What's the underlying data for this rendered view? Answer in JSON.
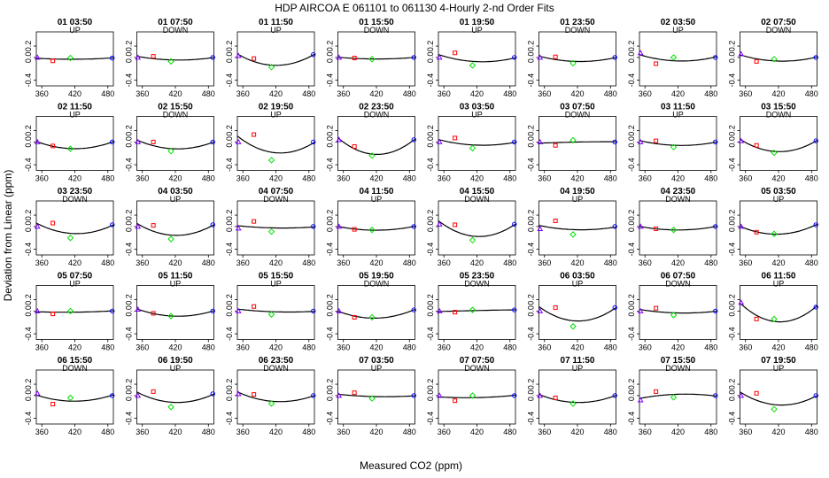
{
  "chart_data": {
    "type": "scatter",
    "title": "HDP   AIRCOA E    061101 to 061130    4-Hourly 2-nd Order Fits",
    "xlabel": "Measured CO2 (ppm)",
    "ylabel": "Deviation from Linear (ppm)",
    "xlim": [
      350,
      490
    ],
    "ylim": [
      -0.5,
      0.45
    ],
    "xticks": [
      "360",
      "420",
      "480"
    ],
    "xtick_values": [
      360,
      420,
      480
    ],
    "yticks": [
      "-0.4",
      "0.0",
      "0.2"
    ],
    "ytick_values": [
      -0.4,
      0,
      0.2
    ],
    "grid": false,
    "layout": "5 rows x 8 panels",
    "standard_x": [
      352,
      380,
      412,
      488
    ],
    "standard_colors": [
      "#8000ff",
      "#ff0000",
      "#00e000",
      "#0000ff"
    ],
    "fit_color": "#000000",
    "panels": [
      {
        "label": "01 03:50",
        "mode": "UP",
        "y": [
          0.0,
          -0.06,
          -0.01,
          -0.01
        ]
      },
      {
        "label": "01 07:50",
        "mode": "DOWN",
        "y": [
          0.0,
          0.02,
          -0.07,
          0.0
        ]
      },
      {
        "label": "01 11:50",
        "mode": "UP",
        "y": [
          0.03,
          -0.02,
          -0.17,
          0.05
        ]
      },
      {
        "label": "01 15:50",
        "mode": "DOWN",
        "y": [
          0.0,
          -0.01,
          -0.03,
          0.0
        ]
      },
      {
        "label": "01 19:50",
        "mode": "UP",
        "y": [
          0.0,
          0.08,
          -0.14,
          0.0
        ]
      },
      {
        "label": "01 23:50",
        "mode": "DOWN",
        "y": [
          0.0,
          0.01,
          -0.1,
          0.0
        ]
      },
      {
        "label": "02 03:50",
        "mode": "UP",
        "y": [
          0.08,
          -0.11,
          0.0,
          0.0
        ]
      },
      {
        "label": "02 07:50",
        "mode": "DOWN",
        "y": [
          0.06,
          -0.07,
          -0.03,
          0.0
        ]
      },
      {
        "label": "02 11:50",
        "mode": "UP",
        "y": [
          0.0,
          -0.07,
          -0.12,
          0.0
        ]
      },
      {
        "label": "02 15:50",
        "mode": "DOWN",
        "y": [
          0.0,
          0.0,
          -0.16,
          0.0
        ]
      },
      {
        "label": "02 19:50",
        "mode": "UP",
        "y": [
          0.0,
          0.13,
          -0.32,
          0.0
        ]
      },
      {
        "label": "02 23:50",
        "mode": "DOWN",
        "y": [
          0.04,
          -0.08,
          -0.24,
          0.04
        ]
      },
      {
        "label": "03 03:50",
        "mode": "UP",
        "y": [
          0.0,
          0.07,
          -0.11,
          0.0
        ]
      },
      {
        "label": "03 07:50",
        "mode": "DOWN",
        "y": [
          0.0,
          -0.06,
          0.03,
          0.0
        ]
      },
      {
        "label": "03 11:50",
        "mode": "UP",
        "y": [
          0.0,
          0.02,
          -0.09,
          0.0
        ]
      },
      {
        "label": "03 15:50",
        "mode": "DOWN",
        "y": [
          0.02,
          -0.06,
          -0.19,
          0.02
        ]
      },
      {
        "label": "03 23:50",
        "mode": "DOWN",
        "y": [
          0.0,
          0.06,
          -0.2,
          0.03
        ]
      },
      {
        "label": "04 03:50",
        "mode": "UP",
        "y": [
          0.0,
          0.02,
          -0.22,
          0.03
        ]
      },
      {
        "label": "04 07:50",
        "mode": "DOWN",
        "y": [
          -0.03,
          0.09,
          -0.09,
          0.0
        ]
      },
      {
        "label": "04 11:50",
        "mode": "UP",
        "y": [
          0.0,
          -0.05,
          -0.06,
          0.0
        ]
      },
      {
        "label": "04 15:50",
        "mode": "DOWN",
        "y": [
          0.04,
          0.03,
          -0.24,
          0.04
        ]
      },
      {
        "label": "04 19:50",
        "mode": "UP",
        "y": [
          -0.04,
          0.1,
          -0.14,
          0.0
        ]
      },
      {
        "label": "04 23:50",
        "mode": "DOWN",
        "y": [
          0.0,
          -0.04,
          -0.06,
          0.0
        ]
      },
      {
        "label": "05 03:50",
        "mode": "UP",
        "y": [
          0.0,
          -0.1,
          -0.13,
          0.03
        ]
      },
      {
        "label": "05 07:50",
        "mode": "UP",
        "y": [
          0.0,
          -0.05,
          0.0,
          0.0
        ]
      },
      {
        "label": "05 11:50",
        "mode": "UP",
        "y": [
          0.03,
          -0.04,
          -0.09,
          0.0
        ]
      },
      {
        "label": "05 15:50",
        "mode": "UP",
        "y": [
          0.0,
          0.08,
          -0.06,
          0.0
        ]
      },
      {
        "label": "05 19:50",
        "mode": "DOWN",
        "y": [
          0.0,
          -0.11,
          -0.11,
          0.02
        ]
      },
      {
        "label": "05 23:50",
        "mode": "DOWN",
        "y": [
          0.0,
          -0.02,
          0.02,
          0.02
        ]
      },
      {
        "label": "06 03:50",
        "mode": "UP",
        "y": [
          0.0,
          0.06,
          -0.27,
          0.06
        ]
      },
      {
        "label": "06 07:50",
        "mode": "DOWN",
        "y": [
          0.0,
          0.05,
          -0.07,
          0.0
        ]
      },
      {
        "label": "06 11:50",
        "mode": "UP",
        "y": [
          0.15,
          -0.14,
          -0.14,
          0.07
        ]
      },
      {
        "label": "06 15:50",
        "mode": "DOWN",
        "y": [
          0.04,
          -0.15,
          -0.04,
          0.0
        ]
      },
      {
        "label": "06 19:50",
        "mode": "UP",
        "y": [
          0.0,
          0.07,
          -0.2,
          0.03
        ]
      },
      {
        "label": "06 23:50",
        "mode": "DOWN",
        "y": [
          0.03,
          0.02,
          -0.14,
          0.0
        ]
      },
      {
        "label": "07 03:50",
        "mode": "UP",
        "y": [
          0.0,
          0.05,
          -0.05,
          0.0
        ]
      },
      {
        "label": "07 07:50",
        "mode": "DOWN",
        "y": [
          0.0,
          -0.09,
          0.0,
          0.0
        ]
      },
      {
        "label": "07 11:50",
        "mode": "UP",
        "y": [
          0.0,
          -0.04,
          -0.14,
          0.0
        ]
      },
      {
        "label": "07 15:50",
        "mode": "DOWN",
        "y": [
          -0.08,
          0.07,
          -0.03,
          0.0
        ]
      },
      {
        "label": "07 19:50",
        "mode": "UP",
        "y": [
          0.0,
          0.04,
          -0.24,
          0.0
        ]
      }
    ]
  }
}
